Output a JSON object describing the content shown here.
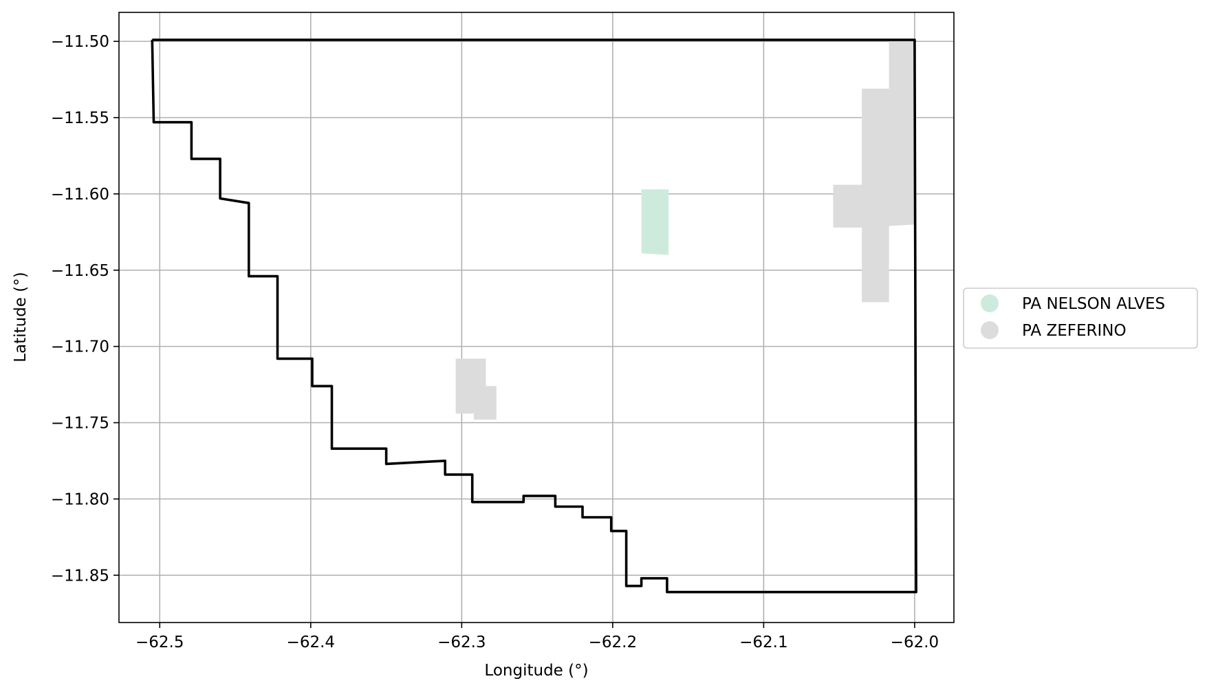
{
  "map": {
    "xlabel": "Longitude (°)",
    "ylabel": "Latitude (°)",
    "xlim": [
      -62.527,
      -61.974
    ],
    "ylim": [
      -11.881,
      -11.481
    ],
    "xticks": [
      -62.5,
      -62.4,
      -62.3,
      -62.2,
      -62.1,
      -62.0
    ],
    "yticks": [
      -11.5,
      -11.55,
      -11.6,
      -11.65,
      -11.7,
      -11.75,
      -11.8,
      -11.85
    ],
    "xtick_labels": [
      "−62.5",
      "−62.4",
      "−62.3",
      "−62.2",
      "−62.1",
      "−62.0"
    ],
    "ytick_labels": [
      "−11.50",
      "−11.55",
      "−11.60",
      "−11.65",
      "−11.70",
      "−11.75",
      "−11.80",
      "−11.85"
    ],
    "grid": true,
    "colors": {
      "nelson_alves": "#cdebdd",
      "zeferino": "#dcdcdc",
      "boundary": "#000000",
      "grid": "#b0b0b0"
    },
    "boundary": [
      [
        -62.505,
        -11.499
      ],
      [
        -62.0,
        -11.499
      ],
      [
        -61.999,
        -11.861
      ],
      [
        -62.164,
        -11.861
      ],
      [
        -62.164,
        -11.852
      ],
      [
        -62.181,
        -11.852
      ],
      [
        -62.181,
        -11.857
      ],
      [
        -62.191,
        -11.857
      ],
      [
        -62.191,
        -11.821
      ],
      [
        -62.201,
        -11.821
      ],
      [
        -62.201,
        -11.812
      ],
      [
        -62.22,
        -11.812
      ],
      [
        -62.22,
        -11.805
      ],
      [
        -62.238,
        -11.805
      ],
      [
        -62.238,
        -11.798
      ],
      [
        -62.259,
        -11.798
      ],
      [
        -62.259,
        -11.802
      ],
      [
        -62.293,
        -11.802
      ],
      [
        -62.293,
        -11.784
      ],
      [
        -62.311,
        -11.784
      ],
      [
        -62.311,
        -11.775
      ],
      [
        -62.35,
        -11.777
      ],
      [
        -62.35,
        -11.767
      ],
      [
        -62.386,
        -11.767
      ],
      [
        -62.386,
        -11.726
      ],
      [
        -62.399,
        -11.726
      ],
      [
        -62.399,
        -11.708
      ],
      [
        -62.422,
        -11.708
      ],
      [
        -62.422,
        -11.654
      ],
      [
        -62.441,
        -11.654
      ],
      [
        -62.441,
        -11.606
      ],
      [
        -62.46,
        -11.603
      ],
      [
        -62.46,
        -11.577
      ],
      [
        -62.479,
        -11.577
      ],
      [
        -62.479,
        -11.553
      ],
      [
        -62.504,
        -11.553
      ],
      [
        -62.505,
        -11.499
      ]
    ],
    "areas": [
      {
        "name": "PA NELSON ALVES",
        "polygons": [
          [
            [
              -62.181,
              -11.597
            ],
            [
              -62.163,
              -11.597
            ],
            [
              -62.163,
              -11.64
            ],
            [
              -62.181,
              -11.639
            ]
          ]
        ]
      },
      {
        "name": "PA ZEFERINO",
        "polygons": [
          [
            [
              -62.304,
              -11.708
            ],
            [
              -62.284,
              -11.708
            ],
            [
              -62.284,
              -11.726
            ],
            [
              -62.277,
              -11.726
            ],
            [
              -62.277,
              -11.748
            ],
            [
              -62.292,
              -11.748
            ],
            [
              -62.292,
              -11.744
            ],
            [
              -62.304,
              -11.744
            ]
          ],
          [
            [
              -62.017,
              -11.5
            ],
            [
              -62.0,
              -11.5
            ],
            [
              -61.999,
              -11.62
            ],
            [
              -62.017,
              -11.621
            ],
            [
              -62.017,
              -11.671
            ],
            [
              -62.035,
              -11.671
            ],
            [
              -62.035,
              -11.622
            ],
            [
              -62.054,
              -11.622
            ],
            [
              -62.054,
              -11.594
            ],
            [
              -62.035,
              -11.594
            ],
            [
              -62.035,
              -11.531
            ],
            [
              -62.017,
              -11.531
            ]
          ]
        ]
      }
    ],
    "legend": {
      "placement": "center-right",
      "entries": [
        {
          "label": "PA NELSON ALVES",
          "color": "#cdebdd"
        },
        {
          "label": "PA ZEFERINO",
          "color": "#dcdcdc"
        }
      ]
    }
  }
}
